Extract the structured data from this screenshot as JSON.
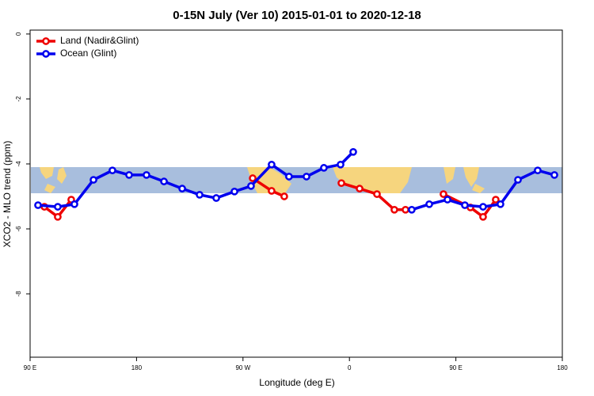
{
  "chart_data": {
    "type": "line",
    "title": "0-15N July (Ver 10)   2015-01-01 to 2020-12-18",
    "x_label": "Longitude (deg E)",
    "y_label": "XCO2 - MLO trend (ppm)",
    "xlim": [
      90,
      540
    ],
    "ylim": [
      -9.95,
      0.12
    ],
    "xticks": [
      {
        "value": 90,
        "label": "90 E"
      },
      {
        "value": 180,
        "label": "180"
      },
      {
        "value": 270,
        "label": "90 W"
      },
      {
        "value": 360,
        "label": "0"
      },
      {
        "value": 450,
        "label": "90 E"
      },
      {
        "value": 540,
        "label": "180"
      }
    ],
    "yticks": [
      0,
      -2,
      -4,
      -6,
      -8
    ],
    "legend": "top-left",
    "series": [
      {
        "name": "Land (Nadir&Glint)",
        "color": "#ee0000",
        "x": [
          102.1,
          113.4,
          124.8,
          null,
          278.2,
          294.2,
          304.9,
          null,
          353.2,
          368.6,
          383.3,
          398.0,
          407.4,
          null,
          439.5,
          462.3,
          473.0,
          483.7
        ],
        "values": [
          -5.32,
          -5.63,
          -5.1,
          null,
          -4.44,
          -4.83,
          -5.0,
          null,
          -4.59,
          -4.76,
          -4.93,
          -5.41,
          -5.41,
          null,
          -4.93,
          -5.34,
          -5.63,
          -5.1
        ]
      },
      {
        "name": "Ocean (Glint)",
        "color": "#0000ee",
        "x": [
          96.7,
          113.4,
          127.5,
          143.6,
          159.6,
          173.7,
          188.4,
          203.2,
          218.6,
          233.3,
          247.4,
          262.8,
          276.8,
          294.2,
          308.9,
          323.7,
          338.4,
          352.5,
          363.2,
          null,
          412.7,
          427.5,
          442.9,
          457.6,
          473.0,
          487.7,
          502.5,
          519.2,
          533.3
        ],
        "values": [
          -5.27,
          -5.32,
          -5.24,
          -4.49,
          -4.2,
          -4.34,
          -4.34,
          -4.54,
          -4.76,
          -4.95,
          -5.05,
          -4.85,
          -4.68,
          -4.02,
          -4.39,
          -4.39,
          -4.12,
          -4.02,
          -3.63,
          null,
          -5.41,
          -5.24,
          -5.1,
          -5.27,
          -5.32,
          -5.24,
          -4.49,
          -4.2,
          -4.34
        ]
      }
    ]
  }
}
